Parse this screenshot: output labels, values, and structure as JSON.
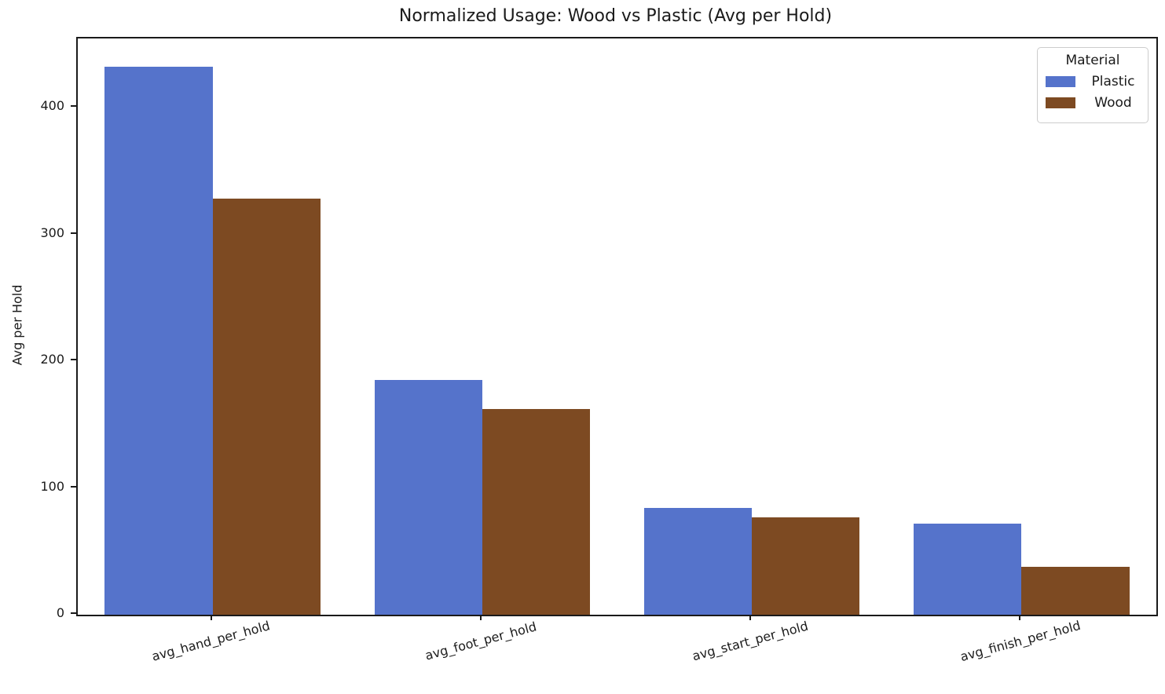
{
  "figure": {
    "title": "Normalized Usage: Wood vs Plastic (Avg per Hold)",
    "ylabel": "Avg per Hold"
  },
  "legend": {
    "title": "Material",
    "entries": [
      {
        "label": "Plastic",
        "color": "#5573cb"
      },
      {
        "label": "Wood",
        "color": "#7d4a22"
      }
    ]
  },
  "chart_data": {
    "type": "bar",
    "title": "Normalized Usage: Wood vs Plastic (Avg per Hold)",
    "xlabel": "",
    "ylabel": "Avg per Hold",
    "categories": [
      "avg_hand_per_hold",
      "avg_foot_per_hold",
      "avg_start_per_hold",
      "avg_finish_per_hold"
    ],
    "series": [
      {
        "name": "Plastic",
        "color": "#5573cb",
        "values": [
          432,
          185,
          84,
          72
        ]
      },
      {
        "name": "Wood",
        "color": "#7d4a22",
        "values": [
          328,
          162,
          77,
          38
        ]
      }
    ],
    "yticks": [
      0,
      100,
      200,
      300,
      400
    ],
    "ylim": [
      0,
      454.5
    ],
    "grid": false,
    "background": "#ffffff",
    "axis_color": "#1a1a1a",
    "legend_title": "Material",
    "legend_position": "upper right",
    "x_tick_rotation_deg": 15,
    "bar_group_fraction": 0.8
  }
}
